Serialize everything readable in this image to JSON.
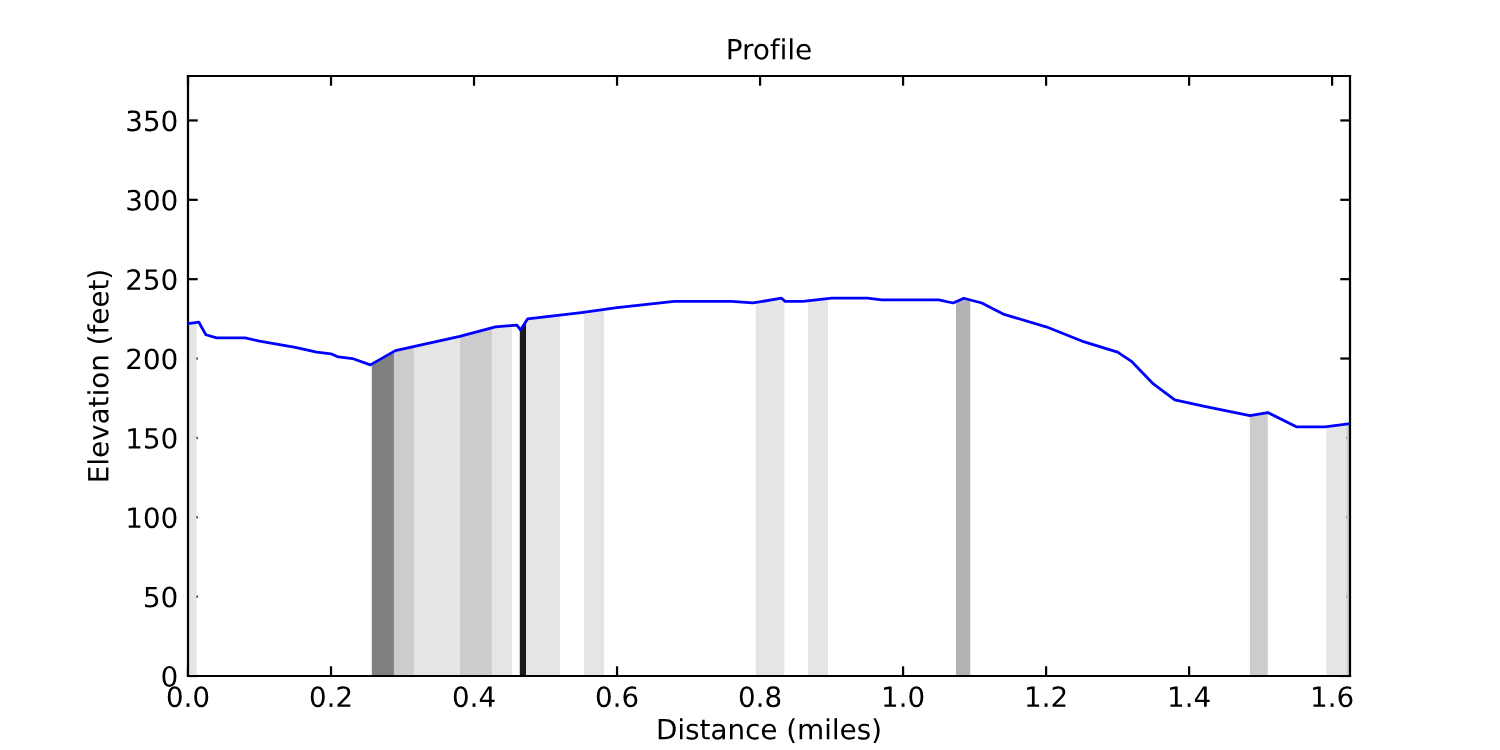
{
  "chart_data": {
    "type": "line",
    "title": "Profile",
    "xlabel": "Distance (miles)",
    "ylabel": "Elevation (feet)",
    "x": [
      0.0,
      0.015,
      0.025,
      0.04,
      0.08,
      0.1,
      0.15,
      0.18,
      0.2,
      0.21,
      0.23,
      0.255,
      0.29,
      0.35,
      0.38,
      0.43,
      0.46,
      0.465,
      0.475,
      0.55,
      0.6,
      0.68,
      0.76,
      0.79,
      0.83,
      0.835,
      0.86,
      0.9,
      0.95,
      0.97,
      1.05,
      1.07,
      1.085,
      1.11,
      1.14,
      1.2,
      1.25,
      1.3,
      1.32,
      1.35,
      1.38,
      1.42,
      1.485,
      1.51,
      1.55,
      1.59,
      1.625
    ],
    "series": [
      {
        "color": "#0000ff",
        "values": [
          222,
          223,
          215,
          213,
          213,
          211,
          207,
          204,
          203,
          201,
          200,
          196,
          205,
          211,
          214,
          220,
          221,
          218,
          225,
          229,
          232,
          236,
          236,
          235,
          238,
          236,
          236,
          238,
          238,
          237,
          237,
          235,
          238,
          235,
          228,
          220,
          211,
          204,
          198,
          184,
          174,
          170,
          164,
          166,
          157,
          157,
          159
        ]
      }
    ],
    "bands": [
      {
        "axis": "x",
        "from": 0.0,
        "to": 0.012,
        "color": "#e5e5e5"
      },
      {
        "axis": "x",
        "from": 0.257,
        "to": 0.288,
        "color": "#808080"
      },
      {
        "axis": "x",
        "from": 0.288,
        "to": 0.316,
        "color": "#cccccc"
      },
      {
        "axis": "x",
        "from": 0.316,
        "to": 0.38,
        "color": "#e5e5e5"
      },
      {
        "axis": "x",
        "from": 0.38,
        "to": 0.425,
        "color": "#cccccc"
      },
      {
        "axis": "x",
        "from": 0.425,
        "to": 0.453,
        "color": "#e5e5e5"
      },
      {
        "axis": "x",
        "from": 0.464,
        "to": 0.473,
        "color": "#1a1a1a"
      },
      {
        "axis": "x",
        "from": 0.473,
        "to": 0.52,
        "color": "#e5e5e5"
      },
      {
        "axis": "x",
        "from": 0.554,
        "to": 0.582,
        "color": "#e5e5e5"
      },
      {
        "axis": "x",
        "from": 0.794,
        "to": 0.834,
        "color": "#e5e5e5"
      },
      {
        "axis": "x",
        "from": 0.867,
        "to": 0.895,
        "color": "#e5e5e5"
      },
      {
        "axis": "x",
        "from": 1.074,
        "to": 1.094,
        "color": "#b3b3b3"
      },
      {
        "axis": "x",
        "from": 1.485,
        "to": 1.51,
        "color": "#cccccc"
      },
      {
        "axis": "x",
        "from": 1.592,
        "to": 1.62,
        "color": "#e5e5e5"
      },
      {
        "axis": "x",
        "from": 1.62,
        "to": 1.625,
        "color": "#cccccc"
      }
    ],
    "xlim": [
      0,
      1.625
    ],
    "ylim": [
      0,
      378
    ],
    "xticks": [
      {
        "value": 0,
        "label": "0.0"
      },
      {
        "value": 0.2,
        "label": "0.2"
      },
      {
        "value": 0.4,
        "label": "0.4"
      },
      {
        "value": 0.6,
        "label": "0.6"
      },
      {
        "value": 0.8,
        "label": "0.8"
      },
      {
        "value": 1.0,
        "label": "1.0"
      },
      {
        "value": 1.2,
        "label": "1.2"
      },
      {
        "value": 1.4,
        "label": "1.4"
      },
      {
        "value": 1.6,
        "label": "1.6"
      }
    ],
    "yticks": [
      0,
      50,
      100,
      150,
      200,
      250,
      300,
      350
    ],
    "grid": false,
    "legend": false,
    "marker": "none",
    "line_style": "solid"
  }
}
